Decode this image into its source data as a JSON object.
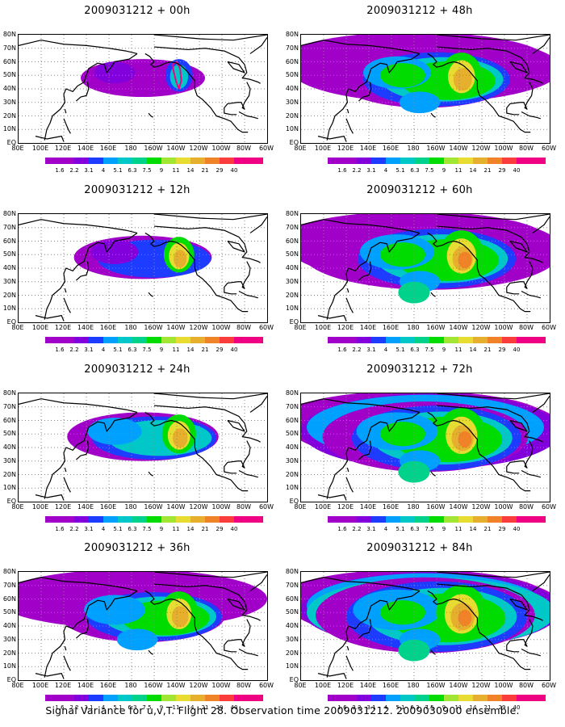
{
  "panels": [
    {
      "title": "2009031212 + 00h",
      "stage": 0
    },
    {
      "title": "2009031212 + 48h",
      "stage": 4
    },
    {
      "title": "2009031212 + 12h",
      "stage": 1
    },
    {
      "title": "2009031212 + 60h",
      "stage": 5
    },
    {
      "title": "2009031212 + 24h",
      "stage": 2
    },
    {
      "title": "2009031212 + 72h",
      "stage": 6
    },
    {
      "title": "2009031212 + 36h",
      "stage": 3
    },
    {
      "title": "2009031212 + 84h",
      "stage": 7
    }
  ],
  "lat_labels": [
    "80N",
    "70N",
    "60N",
    "50N",
    "40N",
    "30N",
    "20N",
    "10N",
    "EQ"
  ],
  "lon_labels": [
    "80E",
    "100E",
    "120E",
    "140E",
    "160E",
    "180",
    "160W",
    "140W",
    "120W",
    "100W",
    "80W",
    "60W"
  ],
  "colorbar": {
    "levels": [
      "1.6",
      "2.2",
      "3.1",
      "4",
      "5.1",
      "6.3",
      "7.5",
      "9",
      "11",
      "14",
      "21",
      "29",
      "40"
    ],
    "colors": [
      "#a000c8",
      "#8200dc",
      "#1e3cff",
      "#00a0ff",
      "#00c8c8",
      "#00d28c",
      "#00dc00",
      "#a0e632",
      "#e6dc32",
      "#e6af2d",
      "#f08228",
      "#fa3c3c",
      "#f00082"
    ]
  },
  "footer": "Signal Variance for u,v,T. Flight 28. Observation time 2009031212. 2009030900 ensemble."
}
